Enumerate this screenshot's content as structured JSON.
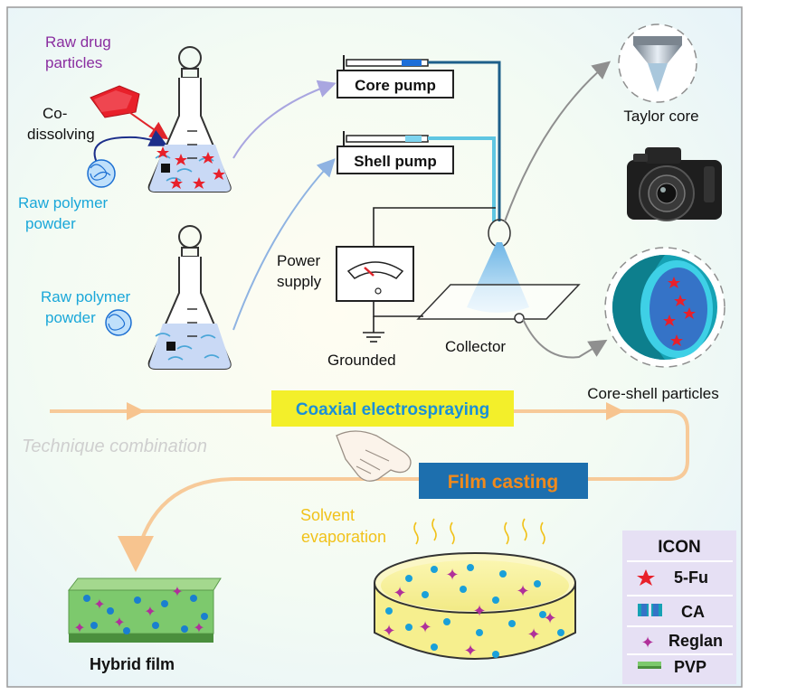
{
  "labels": {
    "raw_drug_line1": "Raw drug",
    "raw_drug_line2": "particles",
    "codissolving_line1": "Co-",
    "codissolving_line2": "dissolving",
    "raw_polymer_a_line1": "Raw polymer",
    "raw_polymer_a_line2": "powder",
    "raw_polymer_b_line1": "Raw polymer",
    "raw_polymer_b_line2": "powder",
    "core_pump": "Core pump",
    "shell_pump": "Shell pump",
    "taylor_cone": "Taylor core",
    "power_supply_line1": "Power",
    "power_supply_line2": "supply",
    "grounded": "Grounded",
    "collector": "Collector",
    "core_shell_particles": "Core-shell particles",
    "coaxial_electrospraying": "Coaxial electrospraying",
    "technique_combination": "Technique combination",
    "film_casting": "Film casting",
    "solvent_line1": "Solvent",
    "solvent_line2": "evaporation",
    "hybrid_film": "Hybrid film"
  },
  "legend": {
    "title": "ICON",
    "items": [
      {
        "label": "5-Fu",
        "icon": "red-star-icon"
      },
      {
        "label": "CA",
        "icon": "teal-shell-icon"
      },
      {
        "label": "Reglan",
        "icon": "purple-cross-icon"
      },
      {
        "label": "PVP",
        "icon": "green-bar-icon"
      }
    ]
  },
  "colors": {
    "purple_text": "#8a2ea0",
    "cyan_text": "#1aa7d9",
    "yellow_box": "#f3ef2a",
    "blue_box": "#1d6fae",
    "orange_text": "#f08a1c",
    "orange_arrow": "#f7c48f",
    "legend_bg": "#e6e0f4",
    "drug_red": "#e8202a",
    "reglan_purple": "#b0309a",
    "film_green": "#7dc96d"
  }
}
